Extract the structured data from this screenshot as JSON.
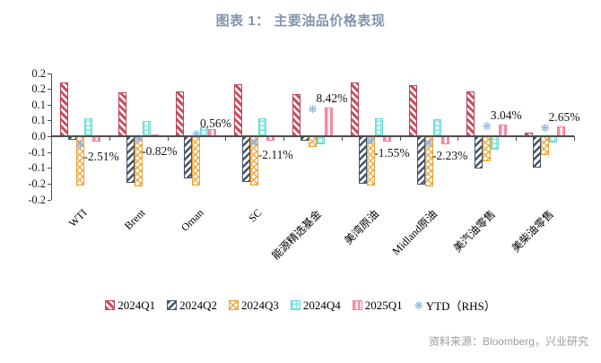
{
  "title": "图表 1：  主要油品价格表现",
  "source": "资料来源：Bloomberg，兴业研究",
  "colors": {
    "q1_red": "#c9505f",
    "q2_navy": "#44546a",
    "q3_orange": "#f2a83e",
    "q4_cyan": "#7fe3de",
    "q5_pink": "#f58da2",
    "ytd_marker_blue": "#86aedc",
    "title_blue": "#8294b0",
    "source_gray": "#9c9c9c",
    "axis_gray": "#4d4d4d"
  },
  "legend": {
    "items": [
      {
        "label": "2024Q1",
        "swatch": "s0"
      },
      {
        "label": "2024Q2",
        "swatch": "s1"
      },
      {
        "label": "2024Q3",
        "swatch": "s2"
      },
      {
        "label": "2024Q4",
        "swatch": "s3"
      },
      {
        "label": "2025Q1",
        "swatch": "s4"
      },
      {
        "label": "YTD（RHS）",
        "swatch": "marker"
      }
    ]
  },
  "chart_data": {
    "type": "bar",
    "title": "图表 1：  主要油品价格表现",
    "categories": [
      "WTI",
      "Brent",
      "Oman",
      "SC",
      "能源精选基金",
      "美湾原油",
      "Midland原油",
      "美汽油零售",
      "美柴油零售"
    ],
    "series": [
      {
        "name": "2024Q1",
        "style": "s0",
        "values": [
          0.169,
          0.138,
          0.143,
          0.165,
          0.133,
          0.171,
          0.162,
          0.141,
          0.012
        ]
      },
      {
        "name": "2024Q2",
        "style": "s1",
        "values": [
          -0.011,
          -0.148,
          -0.132,
          -0.146,
          -0.015,
          -0.15,
          -0.153,
          -0.103,
          -0.098
        ]
      },
      {
        "name": "2024Q3",
        "style": "s2",
        "values": [
          -0.155,
          -0.159,
          -0.155,
          -0.157,
          -0.035,
          -0.157,
          -0.16,
          -0.08,
          -0.06
        ]
      },
      {
        "name": "2024Q4",
        "style": "s3",
        "values": [
          0.058,
          0.048,
          0.029,
          0.058,
          -0.025,
          0.058,
          0.055,
          -0.042,
          -0.021
        ]
      },
      {
        "name": "2025Q1",
        "style": "s4",
        "values": [
          -0.018,
          0.005,
          0.022,
          -0.015,
          0.091,
          -0.018,
          -0.025,
          0.037,
          0.032
        ]
      }
    ],
    "ytd_series": {
      "name": "YTD（RHS）",
      "axis": "right",
      "marker": "❋",
      "values_pct": [
        -2.51,
        -0.82,
        0.56,
        -2.11,
        8.42,
        -1.55,
        -2.23,
        3.04,
        2.65
      ],
      "data_labels": [
        "-2.51%",
        "-0.82%",
        "0.56%",
        "-2.11%",
        "8.42%",
        "-1.55%",
        "-2.23%",
        "3.04%",
        "2.65%"
      ]
    },
    "y_axis": {
      "tick_labels": [
        "0.2",
        "0.2",
        "0.1",
        "0.1",
        "0.0",
        "-0.1",
        "-0.1",
        "-0.2",
        "-0.2"
      ],
      "tick_values": [
        0.2,
        0.15,
        0.1,
        0.05,
        0.0,
        -0.05,
        -0.1,
        -0.15,
        -0.2
      ],
      "ylim": [
        -0.2,
        0.2
      ]
    },
    "grid": false,
    "legend_position": "bottom"
  }
}
